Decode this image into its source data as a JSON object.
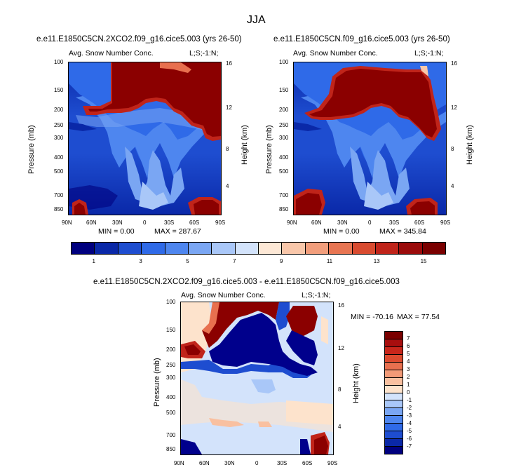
{
  "season": "JJA",
  "colors": {
    "dark_red": "#8b0000",
    "dark_blue": "#00008c",
    "ramp_blue": [
      "#00007f",
      "#0a28a8",
      "#1e4dd0",
      "#2f6ae8",
      "#4e86ef",
      "#7aa6f3",
      "#a9c7f8",
      "#d3e3fb"
    ],
    "ramp_warm": [
      "#fde3cc",
      "#f9c0a0",
      "#f29a77",
      "#e8704f",
      "#d94a2f",
      "#c0241a",
      "#9b0b0b",
      "#7a0000"
    ]
  },
  "chart_data": [
    {
      "type": "heatmap",
      "title": "e.e11.E1850C5CN.2XCO2.f09_g16.cice5.003 (yrs 26-50)",
      "left_label": "Avg. Snow Number Conc.",
      "right_label": "L;S;-1:N;",
      "xlabel": "",
      "ylabel": "Pressure (mb)",
      "y2label": "Height (km)",
      "x_ticks": [
        "90N",
        "60N",
        "30N",
        "0",
        "30S",
        "60S",
        "90S"
      ],
      "y_ticks": [
        "100",
        "150",
        "200",
        "250",
        "300",
        "400",
        "500",
        "700",
        "850"
      ],
      "y2_ticks": [
        "16",
        "12",
        "8",
        "4"
      ],
      "min_text": "MIN =   0.00",
      "max_text": "MAX = 287.67",
      "min": 0.0,
      "max": 287.67
    },
    {
      "type": "heatmap",
      "title": "e.e11.E1850C5CN.f09_g16.cice5.003 (yrs 26-50)",
      "left_label": "Avg. Snow Number Conc.",
      "right_label": "L;S;-1:N;",
      "xlabel": "",
      "ylabel": "Pressure (mb)",
      "y2label": "Height (km)",
      "x_ticks": [
        "90N",
        "60N",
        "30N",
        "0",
        "30S",
        "60S",
        "90S"
      ],
      "y_ticks": [
        "100",
        "150",
        "200",
        "250",
        "300",
        "400",
        "500",
        "700",
        "850"
      ],
      "y2_ticks": [
        "16",
        "12",
        "8",
        "4"
      ],
      "min_text": "MIN =   0.00",
      "max_text": "MAX = 345.84",
      "min": 0.0,
      "max": 345.84
    },
    {
      "type": "heatmap",
      "title": "e.e11.E1850C5CN.2XCO2.f09_g16.cice5.003 - e.e11.E1850C5CN.f09_g16.cice5.003",
      "left_label": "Avg. Snow Number Conc.",
      "right_label": "L;S;-1:N;",
      "xlabel": "",
      "ylabel": "Pressure (mb)",
      "y2label": "Height (km)",
      "x_ticks": [
        "90N",
        "60N",
        "30N",
        "0",
        "30S",
        "60S",
        "90S"
      ],
      "y_ticks": [
        "100",
        "150",
        "200",
        "250",
        "300",
        "400",
        "500",
        "700",
        "850"
      ],
      "y2_ticks": [
        "16",
        "12",
        "8",
        "4"
      ],
      "min_text": "MIN = -70.16",
      "max_text": "MAX =  77.54",
      "min": -70.16,
      "max": 77.54
    }
  ],
  "colorbar_top": {
    "orientation": "horizontal",
    "labels": [
      "1",
      "3",
      "5",
      "7",
      "9",
      "11",
      "13",
      "15"
    ],
    "colors": [
      "#00007f",
      "#0a28a8",
      "#1e4dd0",
      "#2f6ae8",
      "#4e86ef",
      "#7aa6f3",
      "#a9c7f8",
      "#d3e3fb",
      "#fde8d6",
      "#f9c7aa",
      "#f29e7c",
      "#e87552",
      "#d94b30",
      "#c0241a",
      "#9b0b0b",
      "#7a0000"
    ]
  },
  "colorbar_diff": {
    "orientation": "vertical",
    "labels": [
      "7",
      "6",
      "5",
      "4",
      "3",
      "2",
      "1",
      "0",
      "-1",
      "-2",
      "-3",
      "-4",
      "-5",
      "-6",
      "-7"
    ],
    "colors": [
      "#7a0000",
      "#a80e0e",
      "#c8261b",
      "#dc4a2f",
      "#e8704f",
      "#f29a77",
      "#f9c0a0",
      "#fde3cc",
      "#d3e3fb",
      "#a9c7f8",
      "#7aa6f3",
      "#4e86ef",
      "#2f6ae8",
      "#1e4dd0",
      "#0a28a8",
      "#00007f"
    ]
  }
}
